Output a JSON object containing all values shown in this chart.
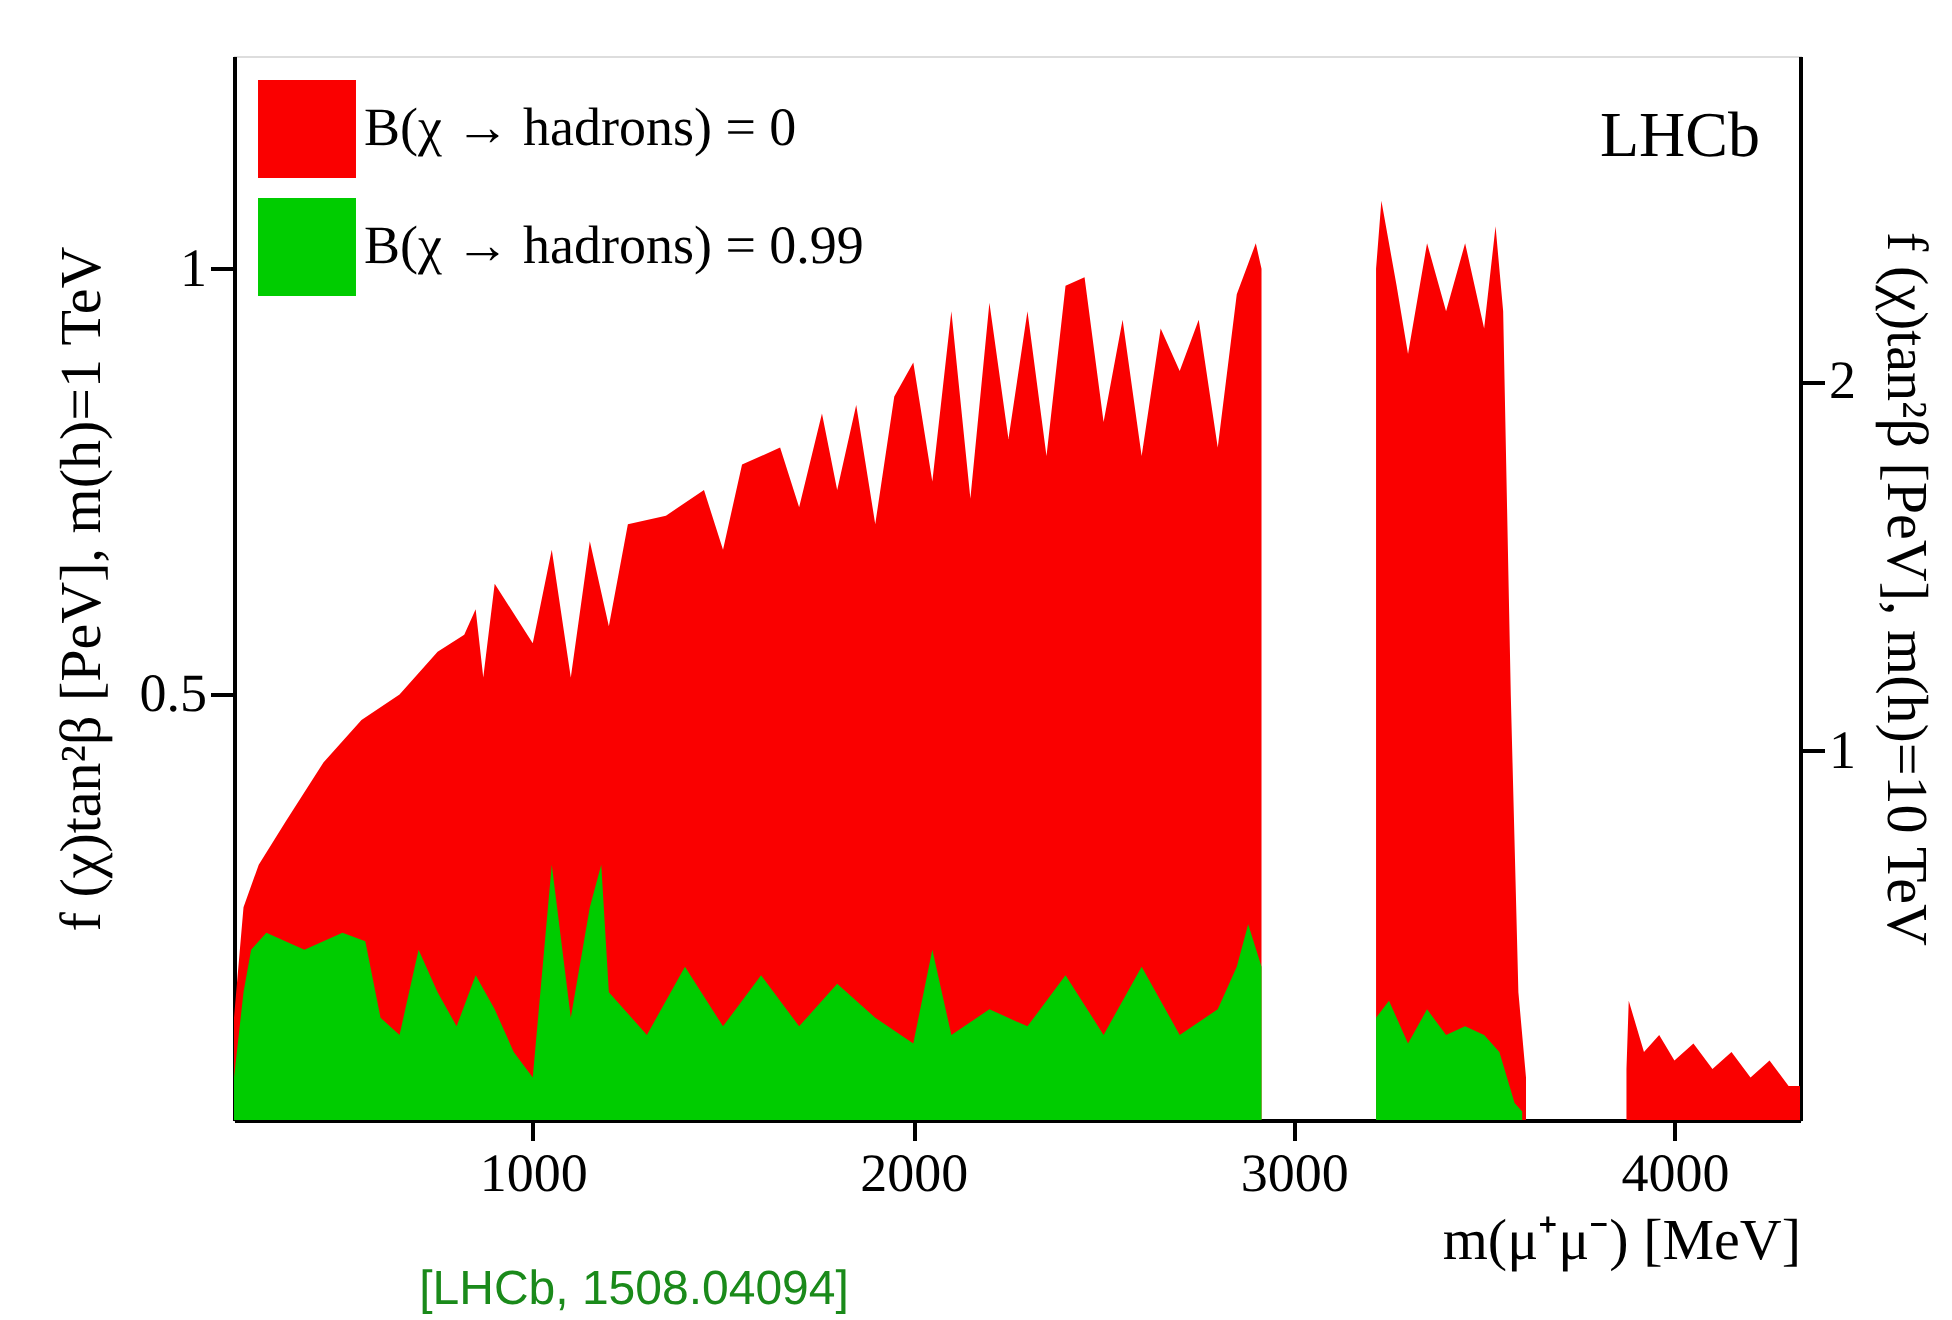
{
  "chart_data": {
    "type": "area",
    "xlabel": "m(μ⁺μ⁻) [MeV]",
    "ylabel": "f (χ)tan²β [PeV], m(h)=1 TeV",
    "y2label": "f (χ)tan²β [PeV], m(h)=10 TeV",
    "annotations": [
      "LHCb",
      "[LHCb, 1508.04094]"
    ],
    "xlim": [
      215,
      4330
    ],
    "xticks": [
      1000,
      2000,
      3000,
      4000
    ],
    "ylim": [
      0,
      1.25
    ],
    "yticks": [
      0.5,
      1
    ],
    "y2lim": [
      0,
      2.88
    ],
    "y2ticks": [
      1,
      2
    ],
    "legend": "top left",
    "grid": false,
    "series": [
      {
        "name": "B(χ → hadrons) = 0",
        "color": "#fa0000",
        "x": [
          215,
          240,
          280,
          350,
          450,
          550,
          650,
          750,
          820,
          850,
          870,
          900,
          1000,
          1050,
          1100,
          1150,
          1200,
          1250,
          1350,
          1450,
          1500,
          1550,
          1650,
          1700,
          1760,
          1800,
          1850,
          1900,
          1950,
          2000,
          2050,
          2100,
          2150,
          2200,
          2250,
          2300,
          2350,
          2400,
          2450,
          2500,
          2550,
          2600,
          2650,
          2700,
          2750,
          2800,
          2850,
          2900,
          2915,
          2930,
          3216,
          3230,
          3270,
          3300,
          3350,
          3400,
          3450,
          3500,
          3530,
          3550,
          3570,
          3590,
          3610,
          3700,
          3874,
          3880,
          3920,
          3960,
          4000,
          4050,
          4100,
          4150,
          4200,
          4250,
          4300,
          4330
        ],
        "values": [
          0.12,
          0.25,
          0.3,
          0.35,
          0.42,
          0.47,
          0.5,
          0.55,
          0.57,
          0.6,
          0.52,
          0.63,
          0.56,
          0.67,
          0.52,
          0.68,
          0.58,
          0.7,
          0.71,
          0.74,
          0.67,
          0.77,
          0.79,
          0.72,
          0.83,
          0.74,
          0.84,
          0.7,
          0.85,
          0.89,
          0.75,
          0.95,
          0.73,
          0.96,
          0.8,
          0.95,
          0.78,
          0.98,
          0.99,
          0.82,
          0.94,
          0.78,
          0.93,
          0.88,
          0.94,
          0.79,
          0.97,
          1.03,
          1.0,
          null,
          1.0,
          1.08,
          0.98,
          0.9,
          1.03,
          0.95,
          1.03,
          0.93,
          1.05,
          0.95,
          0.5,
          0.15,
          0.05,
          null,
          0.06,
          0.14,
          0.08,
          0.1,
          0.07,
          0.09,
          0.06,
          0.08,
          0.05,
          0.07,
          0.04,
          0.04
        ]
      },
      {
        "name": "B(χ → hadrons) = 0.99",
        "color": "#00cc00",
        "x": [
          215,
          240,
          260,
          300,
          400,
          500,
          560,
          600,
          650,
          700,
          750,
          800,
          850,
          900,
          950,
          1000,
          1050,
          1100,
          1150,
          1180,
          1200,
          1300,
          1400,
          1500,
          1600,
          1700,
          1800,
          1900,
          2000,
          2050,
          2100,
          2200,
          2300,
          2400,
          2500,
          2600,
          2700,
          2800,
          2850,
          2880,
          2915,
          2930,
          3216,
          3250,
          3300,
          3350,
          3400,
          3450,
          3500,
          3540,
          3580,
          3600
        ],
        "values": [
          0.05,
          0.15,
          0.2,
          0.22,
          0.2,
          0.22,
          0.21,
          0.12,
          0.1,
          0.2,
          0.15,
          0.11,
          0.17,
          0.13,
          0.08,
          0.05,
          0.3,
          0.12,
          0.25,
          0.3,
          0.15,
          0.1,
          0.18,
          0.11,
          0.17,
          0.11,
          0.16,
          0.12,
          0.09,
          0.2,
          0.1,
          0.13,
          0.11,
          0.17,
          0.1,
          0.18,
          0.1,
          0.13,
          0.18,
          0.23,
          0.18,
          null,
          0.12,
          0.14,
          0.09,
          0.13,
          0.1,
          0.11,
          0.1,
          0.08,
          0.02,
          0.01
        ]
      }
    ]
  }
}
